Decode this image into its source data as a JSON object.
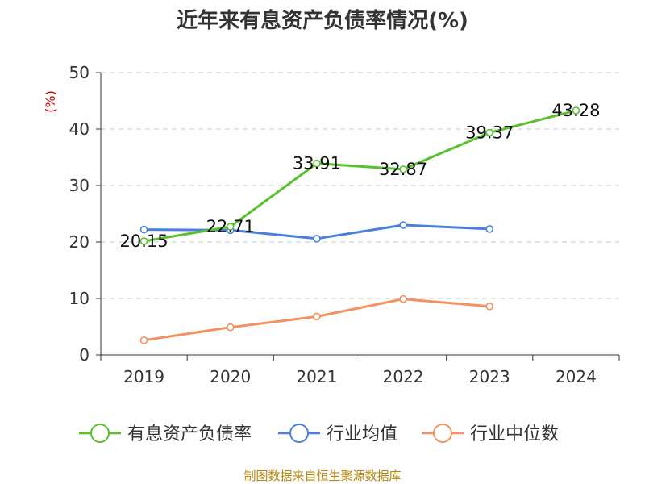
{
  "chart_data": {
    "type": "line",
    "title": "近年来有息资产负债率情况(%)",
    "ylabel": "(%)",
    "xlabel": "",
    "categories": [
      "2019",
      "2020",
      "2021",
      "2022",
      "2023",
      "2024"
    ],
    "ylim": [
      0,
      50
    ],
    "yticks": [
      0,
      10,
      20,
      30,
      40,
      50
    ],
    "grid": true,
    "legend_position": "bottom",
    "series": [
      {
        "name": "有息资产负债率",
        "color": "#5ac02e",
        "values": [
          20.15,
          22.71,
          33.91,
          32.87,
          39.37,
          43.28
        ],
        "labels": [
          "20.15",
          "22.71",
          "33.91",
          "32.87",
          "39.37",
          "43.28"
        ]
      },
      {
        "name": "行业均值",
        "color": "#4a7fdc",
        "values": [
          22.2,
          22.1,
          20.6,
          23.0,
          22.3,
          null
        ]
      },
      {
        "name": "行业中位数",
        "color": "#f39160",
        "values": [
          2.6,
          4.9,
          6.8,
          9.9,
          8.6,
          null
        ]
      }
    ],
    "source": "制图数据来自恒生聚源数据库"
  }
}
